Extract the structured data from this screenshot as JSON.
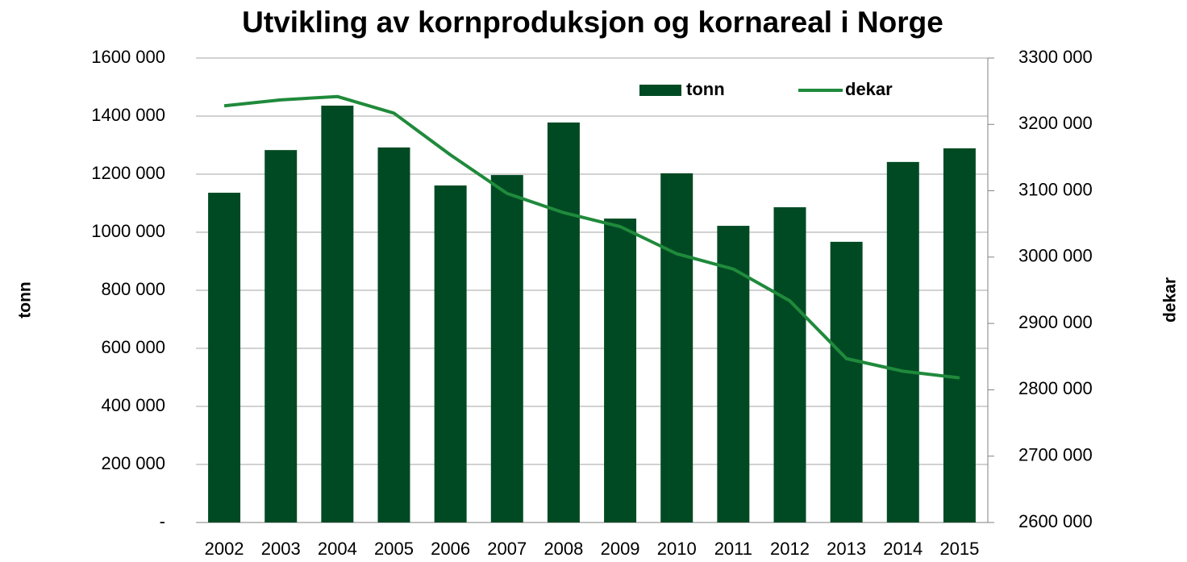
{
  "chart_data": {
    "type": "bar-line",
    "title": "Utvikling av kornproduksjon og kornareal i Norge",
    "y_label": "tonn",
    "y2_label": "dekar",
    "categories": [
      "2002",
      "2003",
      "2004",
      "2005",
      "2006",
      "2007",
      "2008",
      "2009",
      "2010",
      "2011",
      "2012",
      "2013",
      "2014",
      "2015"
    ],
    "series": [
      {
        "name": "tonn",
        "type": "bar",
        "color": "#004a23",
        "values": [
          1136000,
          1283000,
          1436000,
          1292000,
          1161000,
          1197000,
          1378000,
          1047000,
          1203000,
          1022000,
          1086000,
          967000,
          1242000,
          1289000
        ]
      },
      {
        "name": "dekar",
        "type": "line",
        "axis": "y2",
        "color": "#1f8a3b",
        "values": [
          3228000,
          3237000,
          3242000,
          3217000,
          3154000,
          3096000,
          3067000,
          3046000,
          3005000,
          2982000,
          2934000,
          2847000,
          2828000,
          2818000
        ]
      }
    ],
    "ylim": [
      0,
      1600000
    ],
    "yticks": [
      {
        "value": 0,
        "label": "-"
      },
      {
        "value": 200000,
        "label": "200 000"
      },
      {
        "value": 400000,
        "label": "400 000"
      },
      {
        "value": 600000,
        "label": "600 000"
      },
      {
        "value": 800000,
        "label": "800 000"
      },
      {
        "value": 1000000,
        "label": "1000 000"
      },
      {
        "value": 1200000,
        "label": "1200 000"
      },
      {
        "value": 1400000,
        "label": "1400 000"
      },
      {
        "value": 1600000,
        "label": "1600 000"
      }
    ],
    "y2lim": [
      2600000,
      3300000
    ],
    "y2ticks": [
      {
        "value": 2600000,
        "label": "2600 000"
      },
      {
        "value": 2700000,
        "label": "2700 000"
      },
      {
        "value": 2800000,
        "label": "2800 000"
      },
      {
        "value": 2900000,
        "label": "2900 000"
      },
      {
        "value": 3000000,
        "label": "3000 000"
      },
      {
        "value": 3100000,
        "label": "3100 000"
      },
      {
        "value": 3200000,
        "label": "3200 000"
      },
      {
        "value": 3300000,
        "label": "3300 000"
      }
    ],
    "grid": true,
    "legend": "top"
  }
}
